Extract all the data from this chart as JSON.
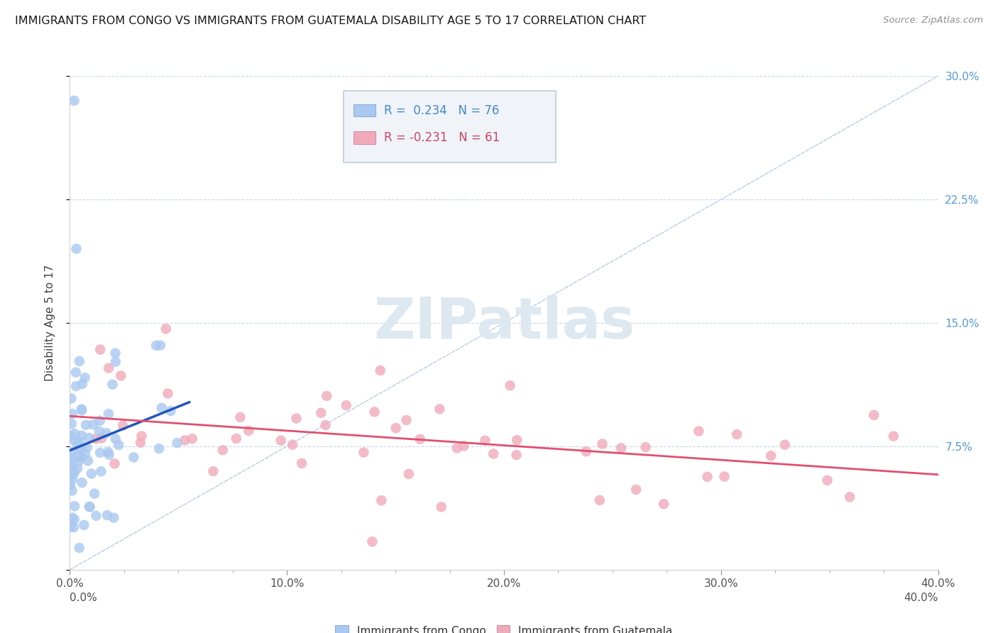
{
  "title": "IMMIGRANTS FROM CONGO VS IMMIGRANTS FROM GUATEMALA DISABILITY AGE 5 TO 17 CORRELATION CHART",
  "source": "Source: ZipAtlas.com",
  "ylabel": "Disability Age 5 to 17",
  "xlim": [
    0.0,
    0.4
  ],
  "ylim": [
    0.0,
    0.3
  ],
  "xticks": [
    0.0,
    0.1,
    0.2,
    0.3,
    0.4
  ],
  "xtick_labels": [
    "0.0%",
    "10.0%",
    "20.0%",
    "30.0%",
    "40.0%"
  ],
  "yticks": [
    0.0,
    0.075,
    0.15,
    0.225,
    0.3
  ],
  "ytick_labels_right": [
    "",
    "7.5%",
    "15.0%",
    "22.5%",
    "30.0%"
  ],
  "congo_R": 0.234,
  "congo_N": 76,
  "guatemala_R": -0.231,
  "guatemala_N": 61,
  "congo_color": "#aac8f0",
  "congo_line_color": "#2255bb",
  "guatemala_color": "#f0aabb",
  "guatemala_line_color": "#e05070",
  "background_color": "#ffffff",
  "grid_color": "#c8d8e8",
  "diag_color": "#b8cce4",
  "watermark_color": "#dde8f0",
  "legend_box_color": "#f0f4f8",
  "legend_border_color": "#c0ccd8"
}
